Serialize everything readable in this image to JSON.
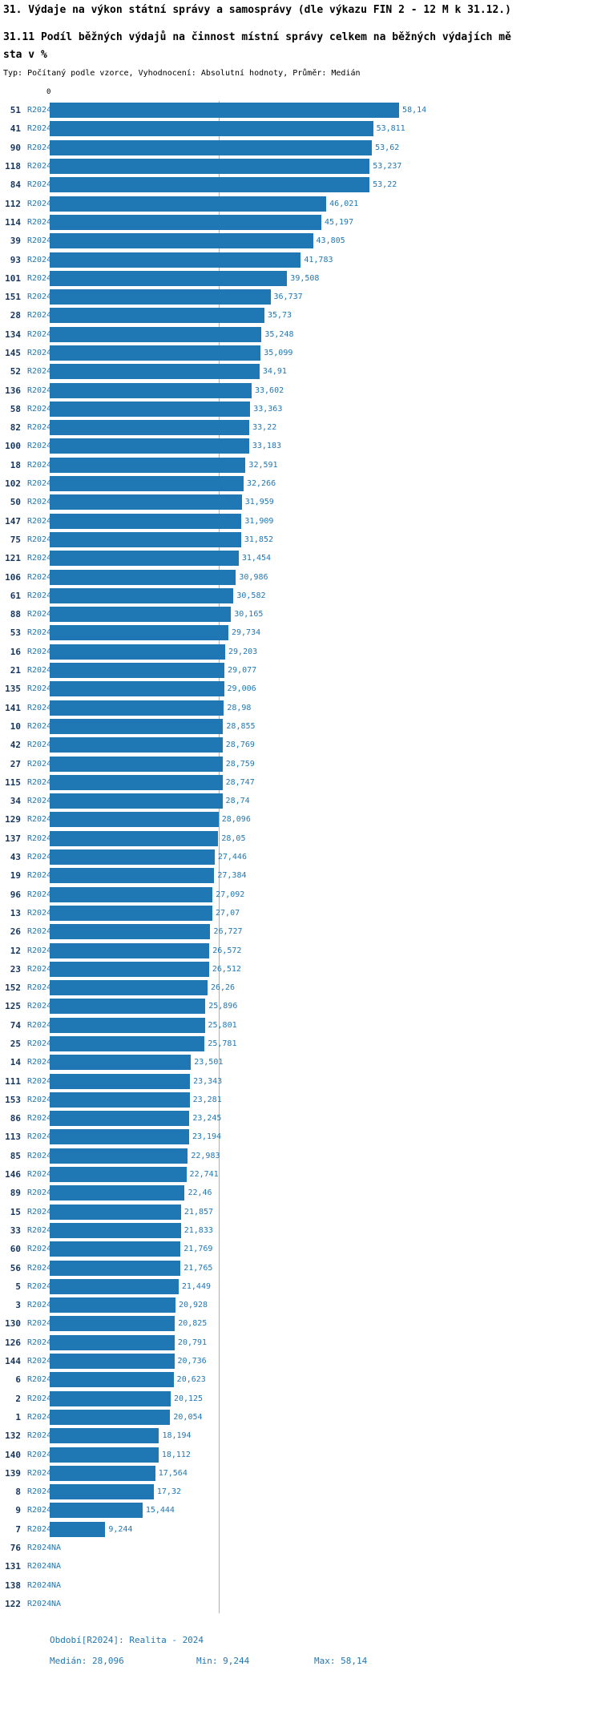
{
  "header": {
    "title": "31. Výdaje na výkon státní správy a samosprávy (dle výkazu FIN 2 - 12 M k 31.12.)",
    "subtitle_lines": [
      "31.11 Podíl běžných výdajů na činnost místní správy celkem na běžných výdajích mě",
      "sta v %"
    ],
    "meta": "Typ: Počítaný podle vzorce, Vyhodnocení: Absolutní hodnoty, Průměr: Medián"
  },
  "colors": {
    "bar": "#1f77b4",
    "value_text": "#1f77b4",
    "row_id_text": "#17365d",
    "median_line": "#92b9d8",
    "footer_text": "#1f77b4"
  },
  "chart_data": {
    "type": "bar",
    "orientation": "horizontal",
    "title": "31.11 Podíl běžných výdajů na činnost místní správy celkem na běžných výdajích města v %",
    "xlabel": "",
    "ylabel": "",
    "xlim": [
      0,
      60
    ],
    "axis_zero_label": "0",
    "series_label": "R2024",
    "median_value": 28.096,
    "min_value": 9.244,
    "max_value": 58.14,
    "na_text": "NA",
    "rows": [
      {
        "id": "51",
        "value": 58.14
      },
      {
        "id": "41",
        "value": 53.811
      },
      {
        "id": "90",
        "value": 53.62
      },
      {
        "id": "118",
        "value": 53.237
      },
      {
        "id": "84",
        "value": 53.22
      },
      {
        "id": "112",
        "value": 46.021
      },
      {
        "id": "114",
        "value": 45.197
      },
      {
        "id": "39",
        "value": 43.805
      },
      {
        "id": "93",
        "value": 41.783
      },
      {
        "id": "101",
        "value": 39.508
      },
      {
        "id": "151",
        "value": 36.737
      },
      {
        "id": "28",
        "value": 35.73
      },
      {
        "id": "134",
        "value": 35.248
      },
      {
        "id": "145",
        "value": 35.099
      },
      {
        "id": "52",
        "value": 34.91
      },
      {
        "id": "136",
        "value": 33.602
      },
      {
        "id": "58",
        "value": 33.363
      },
      {
        "id": "82",
        "value": 33.22
      },
      {
        "id": "100",
        "value": 33.183
      },
      {
        "id": "18",
        "value": 32.591
      },
      {
        "id": "102",
        "value": 32.266
      },
      {
        "id": "50",
        "value": 31.959
      },
      {
        "id": "147",
        "value": 31.909
      },
      {
        "id": "75",
        "value": 31.852
      },
      {
        "id": "121",
        "value": 31.454
      },
      {
        "id": "106",
        "value": 30.986
      },
      {
        "id": "61",
        "value": 30.582
      },
      {
        "id": "88",
        "value": 30.165
      },
      {
        "id": "53",
        "value": 29.734
      },
      {
        "id": "16",
        "value": 29.203
      },
      {
        "id": "21",
        "value": 29.077
      },
      {
        "id": "135",
        "value": 29.006
      },
      {
        "id": "141",
        "value": 28.98
      },
      {
        "id": "10",
        "value": 28.855
      },
      {
        "id": "42",
        "value": 28.769
      },
      {
        "id": "27",
        "value": 28.759
      },
      {
        "id": "115",
        "value": 28.747
      },
      {
        "id": "34",
        "value": 28.74
      },
      {
        "id": "129",
        "value": 28.096
      },
      {
        "id": "137",
        "value": 28.05
      },
      {
        "id": "43",
        "value": 27.446
      },
      {
        "id": "19",
        "value": 27.384
      },
      {
        "id": "96",
        "value": 27.092
      },
      {
        "id": "13",
        "value": 27.07
      },
      {
        "id": "26",
        "value": 26.727
      },
      {
        "id": "12",
        "value": 26.572
      },
      {
        "id": "23",
        "value": 26.512
      },
      {
        "id": "152",
        "value": 26.26
      },
      {
        "id": "125",
        "value": 25.896
      },
      {
        "id": "74",
        "value": 25.801
      },
      {
        "id": "25",
        "value": 25.781
      },
      {
        "id": "14",
        "value": 23.501
      },
      {
        "id": "111",
        "value": 23.343
      },
      {
        "id": "153",
        "value": 23.281
      },
      {
        "id": "86",
        "value": 23.245
      },
      {
        "id": "113",
        "value": 23.194
      },
      {
        "id": "85",
        "value": 22.983
      },
      {
        "id": "146",
        "value": 22.741
      },
      {
        "id": "89",
        "value": 22.46
      },
      {
        "id": "15",
        "value": 21.857
      },
      {
        "id": "33",
        "value": 21.833
      },
      {
        "id": "60",
        "value": 21.769
      },
      {
        "id": "56",
        "value": 21.765
      },
      {
        "id": "5",
        "value": 21.449
      },
      {
        "id": "3",
        "value": 20.928
      },
      {
        "id": "130",
        "value": 20.825
      },
      {
        "id": "126",
        "value": 20.791
      },
      {
        "id": "144",
        "value": 20.736
      },
      {
        "id": "6",
        "value": 20.623
      },
      {
        "id": "2",
        "value": 20.125
      },
      {
        "id": "1",
        "value": 20.054
      },
      {
        "id": "132",
        "value": 18.194
      },
      {
        "id": "140",
        "value": 18.112
      },
      {
        "id": "139",
        "value": 17.564
      },
      {
        "id": "8",
        "value": 17.32
      },
      {
        "id": "9",
        "value": 15.444
      },
      {
        "id": "7",
        "value": 9.244
      },
      {
        "id": "76",
        "value": null
      },
      {
        "id": "131",
        "value": null
      },
      {
        "id": "138",
        "value": null
      },
      {
        "id": "122",
        "value": null
      }
    ]
  },
  "footer": {
    "period": "Období[R2024]: Realita - 2024",
    "median": "Medián: 28,096",
    "min": "Min: 9,244",
    "max": "Max: 58,14"
  }
}
